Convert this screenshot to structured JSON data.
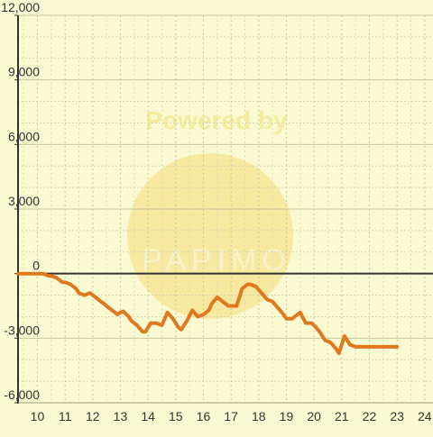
{
  "watermark": {
    "top_text": "Powered by",
    "brand_text": "PAPIMO"
  },
  "chart_data": {
    "type": "line",
    "title": "",
    "xlabel": "",
    "ylabel": "",
    "xlim": [
      9.3,
      24.3
    ],
    "ylim": [
      -6000,
      12000
    ],
    "x_ticks": [
      10,
      11,
      12,
      13,
      14,
      15,
      16,
      17,
      18,
      19,
      20,
      21,
      22,
      23,
      24
    ],
    "x_tick_labels": [
      "10",
      "11",
      "12",
      "13",
      "14",
      "15",
      "16",
      "17",
      "18",
      "19",
      "20",
      "21",
      "22",
      "23",
      "24"
    ],
    "y_ticks": [
      -6000,
      -3000,
      0,
      3000,
      6000,
      9000,
      12000
    ],
    "y_tick_labels": [
      "-6,000",
      "-3,000",
      "0",
      "3,000",
      "6,000",
      "9,000",
      "12,000"
    ],
    "grid": true,
    "background_color": "#fafad2",
    "line_color": "#e07820",
    "series": [
      {
        "x": [
          9.3,
          9.5,
          9.8,
          10.0,
          10.2,
          10.4,
          10.5,
          10.7,
          10.9,
          11.0,
          11.2,
          11.4,
          11.5,
          11.7,
          11.8,
          11.9,
          12.1,
          12.2,
          12.4,
          12.6,
          12.8,
          12.9,
          13.0,
          13.1,
          13.3,
          13.4,
          13.6,
          13.8,
          13.9,
          14.1,
          14.3,
          14.5,
          14.7,
          14.9,
          15.1,
          15.2,
          15.4,
          15.6,
          15.8,
          16.0,
          16.2,
          16.3,
          16.5,
          16.7,
          16.9,
          17.0,
          17.2,
          17.4,
          17.6,
          17.7,
          17.9,
          18.1,
          18.3,
          18.5,
          18.7,
          18.9,
          19.0,
          19.2,
          19.3,
          19.5,
          19.7,
          19.9,
          20.0,
          20.2,
          20.4,
          20.6,
          20.8,
          20.9,
          21.0,
          21.1,
          21.3,
          21.5,
          21.7,
          21.9,
          22.1,
          22.3,
          22.5,
          22.7,
          22.9,
          23.0
        ],
        "y": [
          0,
          0,
          0,
          0,
          0,
          -100,
          -100,
          -200,
          -400,
          -400,
          -500,
          -700,
          -900,
          -1000,
          -950,
          -900,
          -1100,
          -1200,
          -1400,
          -1600,
          -1800,
          -1900,
          -1800,
          -1750,
          -2000,
          -2200,
          -2400,
          -2700,
          -2700,
          -2300,
          -2300,
          -2400,
          -1800,
          -2100,
          -2500,
          -2600,
          -2200,
          -1700,
          -2000,
          -1900,
          -1700,
          -1400,
          -1100,
          -1300,
          -1500,
          -1500,
          -1500,
          -700,
          -500,
          -500,
          -600,
          -900,
          -1200,
          -1300,
          -1600,
          -1900,
          -2100,
          -2100,
          -2000,
          -1800,
          -2300,
          -2300,
          -2400,
          -2700,
          -3100,
          -3200,
          -3500,
          -3700,
          -3300,
          -2900,
          -3300,
          -3400,
          -3400,
          -3400,
          -3400,
          -3400,
          -3400,
          -3400,
          -3400,
          -3400
        ]
      }
    ]
  }
}
